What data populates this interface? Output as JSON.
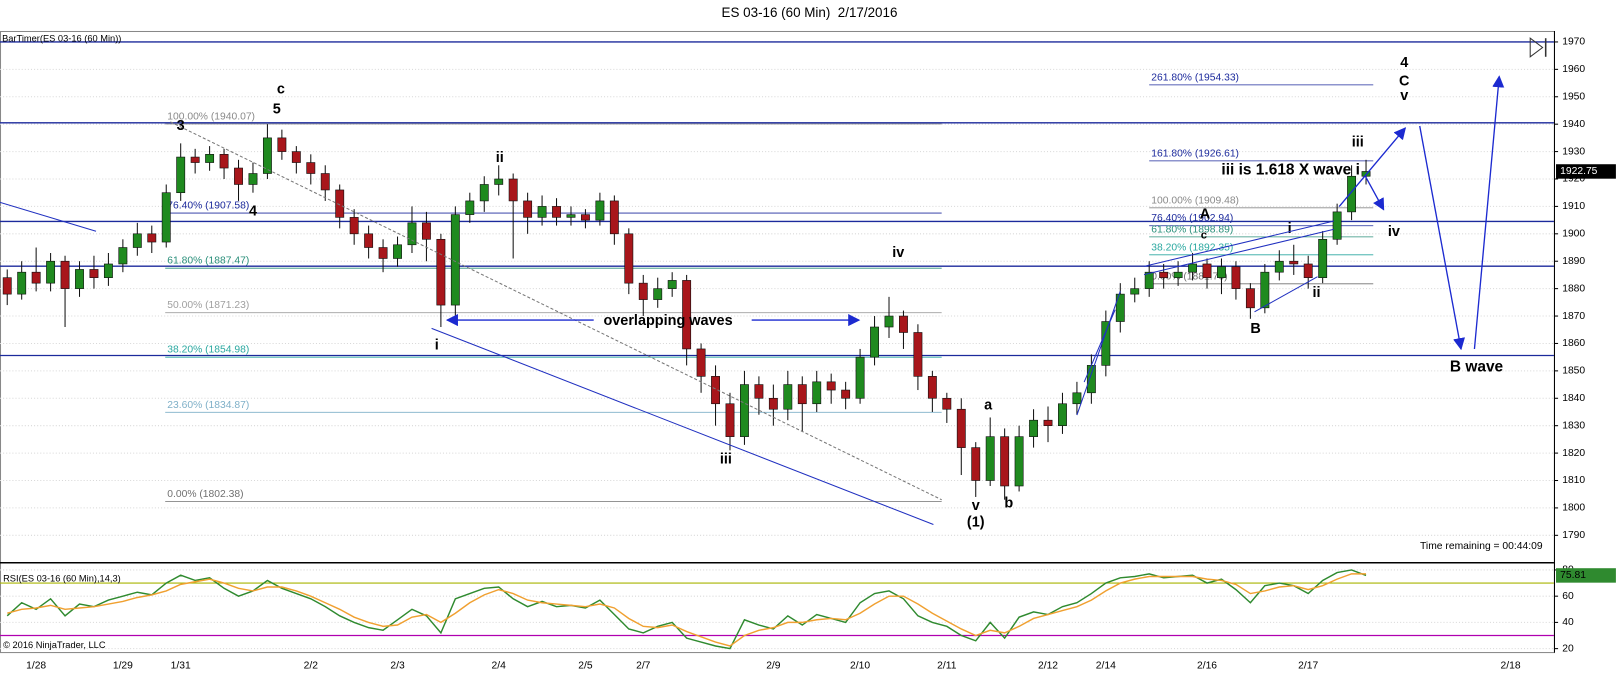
{
  "title": "ES 03-16 (60 Min)  2/17/2016",
  "footer": "© 2016 NinjaTrader, LLC",
  "chart_data": [
    {
      "type": "candlestick",
      "label": "BarTimer(ES 03-16 (60 Min))",
      "timer": "Time remaining = 00:44:09",
      "categories": [
        null,
        null,
        "1/28",
        null,
        null,
        null,
        null,
        null,
        "1/29",
        null,
        null,
        null,
        "1/31",
        null,
        null,
        null,
        null,
        null,
        null,
        null,
        null,
        "2/2",
        null,
        null,
        null,
        null,
        null,
        "2/3",
        null,
        null,
        null,
        null,
        null,
        null,
        "2/4",
        null,
        null,
        null,
        null,
        null,
        "2/5",
        null,
        null,
        null,
        "2/7",
        null,
        null,
        null,
        null,
        null,
        null,
        null,
        null,
        "2/9",
        null,
        null,
        null,
        null,
        null,
        "2/10",
        null,
        null,
        null,
        null,
        null,
        "2/11",
        null,
        null,
        null,
        null,
        null,
        null,
        "2/12",
        null,
        null,
        null,
        "2/14",
        null,
        null,
        null,
        null,
        null,
        null,
        "2/16",
        null,
        null,
        null,
        null,
        null,
        null,
        "2/17",
        null,
        null,
        null,
        null,
        null,
        null,
        null,
        null,
        null,
        null,
        null,
        null,
        null,
        "2/18",
        null,
        null
      ],
      "open": [
        1884,
        1878,
        1886,
        1882,
        1890,
        1880,
        1887,
        1884,
        1889,
        1895,
        1900,
        1897,
        1915,
        1928,
        1926,
        1929,
        1924,
        1918,
        1922,
        1935,
        1930,
        1926,
        1922,
        1916,
        1906,
        1900,
        1895,
        1891,
        1896,
        1904,
        1898,
        1874,
        1907,
        1912,
        1918,
        1920,
        1912,
        1906,
        1910,
        1906,
        1907,
        1905,
        1912,
        1900,
        1882,
        1876,
        1880,
        1883,
        1858,
        1848,
        1838,
        1826,
        1845,
        1840,
        1836,
        1845,
        1838,
        1846,
        1843,
        1840,
        1855,
        1866,
        1870,
        1864,
        1848,
        1840,
        1836,
        1822,
        1810,
        1826,
        1808,
        1826,
        1832,
        1830,
        1838,
        1842,
        1852,
        1868,
        1878,
        1880,
        1886,
        1884,
        1886,
        1889,
        1884,
        1888,
        1880,
        1873,
        1886,
        1890,
        1889,
        1884,
        1898,
        1908,
        1921,
        null,
        null,
        null,
        null,
        null,
        null,
        null,
        null,
        null,
        null,
        null,
        null
      ],
      "high": [
        1887,
        1890,
        1895,
        1893,
        1892,
        1890,
        1892,
        1893,
        1898,
        1904,
        1903,
        1918,
        1933,
        1931,
        1932,
        1931,
        1927,
        1926,
        1940,
        1938,
        1932,
        1929,
        1925,
        1918,
        1909,
        1903,
        1898,
        1899,
        1910,
        1908,
        1900,
        1910,
        1915,
        1921,
        1925,
        1922,
        1915,
        1914,
        1913,
        1910,
        1909,
        1915,
        1914,
        1902,
        1885,
        1884,
        1886,
        1885,
        1860,
        1852,
        1842,
        1850,
        1848,
        1845,
        1850,
        1848,
        1850,
        1849,
        1846,
        1858,
        1870,
        1877,
        1872,
        1867,
        1850,
        1842,
        1840,
        1824,
        1833,
        1829,
        1830,
        1836,
        1837,
        1842,
        1846,
        1856,
        1872,
        1882,
        1884,
        1890,
        1889,
        1890,
        1893,
        1891,
        1891,
        1890,
        1882,
        1889,
        1894,
        1896,
        1892,
        1901,
        1911,
        1925,
        1927,
        null,
        null,
        null,
        null,
        null,
        null,
        null,
        null,
        null,
        null,
        null,
        null
      ],
      "low": [
        1874,
        1876,
        1879,
        1879,
        1866,
        1877,
        1880,
        1881,
        1886,
        1892,
        1893,
        1895,
        1912,
        1922,
        1923,
        1920,
        1912,
        1915,
        1920,
        1927,
        1922,
        1918,
        1912,
        1902,
        1896,
        1891,
        1886,
        1888,
        1893,
        1890,
        1866,
        1870,
        1904,
        1908,
        1914,
        1891,
        1900,
        1903,
        1903,
        1903,
        1902,
        1903,
        1896,
        1878,
        1870,
        1873,
        1877,
        1852,
        1842,
        1830,
        1821,
        1823,
        1834,
        1830,
        1832,
        1828,
        1835,
        1838,
        1836,
        1838,
        1852,
        1862,
        1858,
        1843,
        1835,
        1831,
        1812,
        1804,
        1808,
        1803,
        1806,
        1822,
        1824,
        1827,
        1834,
        1838,
        1848,
        1864,
        1875,
        1877,
        1880,
        1881,
        1883,
        1880,
        1878,
        1876,
        1869,
        1871,
        1883,
        1885,
        1880,
        1882,
        1896,
        1905,
        1918,
        null,
        null,
        null,
        null,
        null,
        null,
        null,
        null,
        null,
        null,
        null,
        null
      ],
      "close": [
        1878,
        1886,
        1882,
        1890,
        1880,
        1887,
        1884,
        1889,
        1895,
        1900,
        1897,
        1915,
        1928,
        1926,
        1929,
        1924,
        1918,
        1922,
        1935,
        1930,
        1926,
        1922,
        1916,
        1906,
        1900,
        1895,
        1891,
        1896,
        1904,
        1898,
        1874,
        1907,
        1912,
        1918,
        1920,
        1912,
        1906,
        1910,
        1906,
        1907,
        1905,
        1912,
        1900,
        1882,
        1876,
        1880,
        1883,
        1858,
        1848,
        1838,
        1826,
        1845,
        1840,
        1836,
        1845,
        1838,
        1846,
        1843,
        1840,
        1855,
        1866,
        1870,
        1864,
        1848,
        1840,
        1836,
        1822,
        1810,
        1826,
        1808,
        1826,
        1832,
        1830,
        1838,
        1842,
        1852,
        1868,
        1878,
        1880,
        1886,
        1884,
        1886,
        1889,
        1884,
        1888,
        1880,
        1873,
        1886,
        1890,
        1889,
        1884,
        1898,
        1908,
        1921,
        1922.75,
        null,
        null,
        null,
        null,
        null,
        null,
        null,
        null,
        null,
        null,
        null,
        null
      ],
      "up_color": "#1f8a1f",
      "down_color": "#a8161b",
      "ylim": [
        1780,
        1974
      ],
      "yticks": [
        1790,
        1800,
        1810,
        1820,
        1830,
        1840,
        1850,
        1860,
        1870,
        1880,
        1890,
        1900,
        1910,
        1920,
        1930,
        1940,
        1950,
        1960,
        1970
      ],
      "grid": true,
      "levels": [
        1970,
        1940.5,
        1904.5,
        1888.2,
        1855.6
      ],
      "level_color": "#1c2a9c",
      "fib_sets": [
        [
          {
            "label": "100.00% (1940.07)",
            "value": 1940.07,
            "color": "#8a8a8a"
          },
          {
            "label": "76.40% (1907.58)",
            "value": 1907.58,
            "color": "#1c2a9c"
          },
          {
            "label": "61.80% (1887.47)",
            "value": 1887.47,
            "color": "#2a8f7a"
          },
          {
            "label": "50.00% (1871.23)",
            "value": 1871.23,
            "color": "#a0a0a0"
          },
          {
            "label": "38.20% (1854.98)",
            "value": 1854.98,
            "color": "#2aa8a0"
          },
          {
            "label": "23.60% (1834.87)",
            "value": 1834.87,
            "color": "#7fb0c8"
          },
          {
            "label": "0.00% (1802.38)",
            "value": 1802.38,
            "color": "#707070"
          }
        ],
        [
          {
            "label": "261.80% (1954.33)",
            "value": 1954.33,
            "color": "#1c2a9c"
          },
          {
            "label": "161.80% (1926.61)",
            "value": 1926.61,
            "color": "#1c2a9c"
          },
          {
            "label": "100.00% (1909.48)",
            "value": 1909.48,
            "color": "#8a8a8a"
          },
          {
            "label": "76.40% (1902.94)",
            "value": 1902.94,
            "color": "#1c2a9c"
          },
          {
            "label": "61.80% (1898.89)",
            "value": 1898.89,
            "color": "#2a8f7a"
          },
          {
            "label": "38.20% (1892.35)",
            "value": 1892.35,
            "color": "#2aa8a0"
          },
          {
            "label": "0.00% (1881.76)",
            "value": 1881.76,
            "color": "#707070"
          }
        ]
      ],
      "annotations": [
        "3",
        "c",
        "5",
        "4",
        "ii",
        "i",
        "iii",
        "iv",
        "v",
        "(1)",
        "a",
        "b",
        "A",
        "c",
        "B",
        "i",
        "ii",
        "iii",
        "iii is 1.618 X wave i",
        "iv",
        "4",
        "C",
        "v",
        "B wave",
        "overlapping waves"
      ]
    },
    {
      "type": "line",
      "label": "RSI(ES 03-16 (60 Min),14,3)",
      "series": [
        {
          "color": "#2f8a2f",
          "values": [
            45,
            55,
            50,
            58,
            45,
            54,
            52,
            57,
            60,
            63,
            61,
            70,
            76,
            72,
            74,
            66,
            60,
            64,
            72,
            66,
            62,
            58,
            52,
            45,
            40,
            36,
            34,
            42,
            50,
            45,
            32,
            58,
            62,
            66,
            67,
            58,
            52,
            56,
            52,
            53,
            51,
            57,
            46,
            35,
            32,
            37,
            40,
            28,
            25,
            22,
            20,
            42,
            38,
            35,
            45,
            38,
            46,
            43,
            40,
            55,
            62,
            64,
            58,
            45,
            40,
            37,
            30,
            26,
            40,
            28,
            44,
            48,
            46,
            52,
            55,
            62,
            70,
            74,
            75,
            77,
            74,
            75,
            76,
            70,
            73,
            65,
            55,
            68,
            70,
            68,
            62,
            72,
            78,
            80,
            75.81,
            null,
            null,
            null,
            null,
            null,
            null,
            null,
            null,
            null,
            null,
            null,
            null
          ]
        },
        {
          "color": "#f0a030",
          "values": [
            47,
            50,
            51,
            53,
            50,
            51,
            52,
            54,
            56,
            59,
            61,
            64,
            69,
            71,
            73,
            70,
            66,
            64,
            67,
            67,
            64,
            60,
            55,
            50,
            44,
            40,
            37,
            38,
            44,
            46,
            40,
            47,
            55,
            61,
            65,
            62,
            57,
            55,
            54,
            53,
            52,
            54,
            51,
            43,
            37,
            36,
            38,
            33,
            29,
            25,
            22,
            30,
            34,
            36,
            40,
            40,
            42,
            43,
            42,
            47,
            54,
            60,
            60,
            54,
            47,
            41,
            35,
            30,
            34,
            32,
            37,
            43,
            46,
            49,
            52,
            57,
            64,
            70,
            73,
            75,
            75,
            75,
            75,
            73,
            72,
            69,
            62,
            64,
            67,
            68,
            65,
            68,
            73,
            77,
            77,
            null,
            null,
            null,
            null,
            null,
            null,
            null,
            null,
            null,
            null,
            null,
            null
          ]
        }
      ],
      "ylim": [
        17,
        85.5
      ],
      "yticks": [
        20,
        40,
        60,
        80
      ],
      "grid": true,
      "ref_lines": [
        {
          "value": 70,
          "color": "#a8b400"
        },
        {
          "value": 30,
          "color": "#b000b0"
        }
      ]
    }
  ]
}
